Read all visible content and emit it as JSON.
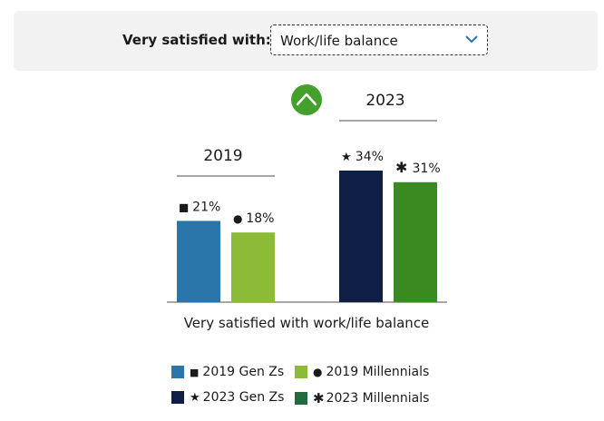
{
  "filter": {
    "label": "Very satisfied with:",
    "selected": "Work/life balance"
  },
  "icons": {
    "dropdown": "chevron-down-icon",
    "toggle": "chevron-up-icon"
  },
  "colors": {
    "gen_z_2019": "#2a75aa",
    "millennials_2019": "#8cbb35",
    "gen_z_2023": "#0e1e45",
    "millennials_2023": "#3a8a22",
    "legend_millennials_2023": "#236b3e",
    "toggle": "#43a02a"
  },
  "chart_data": {
    "type": "bar",
    "xlabel": "Very satisfied with work/life balance",
    "groups": [
      {
        "label": "2019",
        "series_index": [
          0,
          1
        ]
      },
      {
        "label": "2023",
        "series_index": [
          2,
          3
        ]
      }
    ],
    "series": [
      {
        "name": "2019 Gen Zs",
        "marker": "■",
        "value": 21,
        "value_label": "21%"
      },
      {
        "name": "2019 Millennials",
        "marker": "●",
        "value": 18,
        "value_label": "18%"
      },
      {
        "name": "2023 Gen Zs",
        "marker": "★",
        "value": 34,
        "value_label": "34%"
      },
      {
        "name": "2023 Millennials",
        "marker": "✱",
        "value": 31,
        "value_label": "31%"
      }
    ],
    "ylim": [
      0,
      34
    ],
    "legend": [
      {
        "marker": "■",
        "text": "2019 Gen Zs"
      },
      {
        "marker": "●",
        "text": "2019 Millennials"
      },
      {
        "marker": "★",
        "text": "2023 Gen Zs"
      },
      {
        "marker": "✱",
        "text": "2023 Millennials"
      }
    ],
    "legend_placement": "bottom",
    "grid": false
  }
}
